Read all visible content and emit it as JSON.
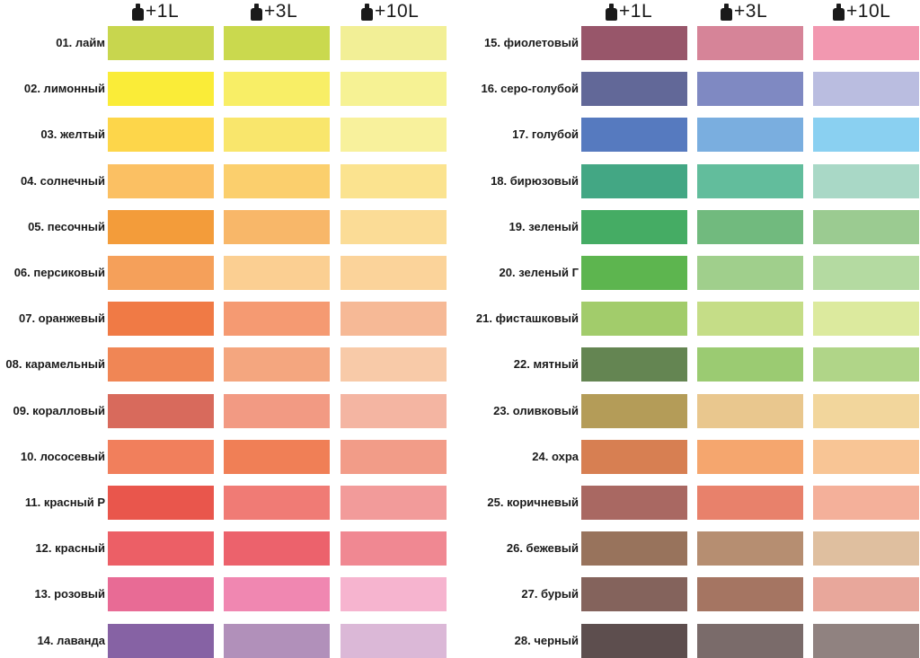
{
  "headers": [
    "+1L",
    "+3L",
    "+10L"
  ],
  "left_colors": [
    {
      "name": "01. лайм",
      "c": [
        "#c8d64e",
        "#cad94e",
        "#f2ef96"
      ]
    },
    {
      "name": "02. лимонный",
      "c": [
        "#faec38",
        "#f8ee66",
        "#f6f294"
      ]
    },
    {
      "name": "03. желтый",
      "c": [
        "#fdd64a",
        "#f9e66c",
        "#f8f19c"
      ]
    },
    {
      "name": "04. солнечный",
      "c": [
        "#fbc063",
        "#fbcf6d",
        "#fbe38f"
      ]
    },
    {
      "name": "05. песочный",
      "c": [
        "#f39c3a",
        "#f8b769",
        "#fbdc96"
      ]
    },
    {
      "name": "06. персиковый",
      "c": [
        "#f5a05a",
        "#fbcf92",
        "#fbd39a"
      ]
    },
    {
      "name": "07. оранжевый",
      "c": [
        "#f07a45",
        "#f59a72",
        "#f6b996"
      ]
    },
    {
      "name": "08. карамельный",
      "c": [
        "#f08655",
        "#f4a67f",
        "#f8caa8"
      ]
    },
    {
      "name": "09. коралловый",
      "c": [
        "#d86a5c",
        "#f29a83",
        "#f4b5a2"
      ]
    },
    {
      "name": "10. лососевый",
      "c": [
        "#f17f5c",
        "#f07f56",
        "#f29c88"
      ]
    },
    {
      "name": "11. красный Р",
      "c": [
        "#e9564c",
        "#f07b75",
        "#f29b9a"
      ]
    },
    {
      "name": "12. красный",
      "c": [
        "#ec5f66",
        "#ec626c",
        "#f08892"
      ]
    },
    {
      "name": "13. розовый",
      "c": [
        "#e86b95",
        "#f087b1",
        "#f6b4cf"
      ]
    },
    {
      "name": "14. лаванда",
      "c": [
        "#8662a4",
        "#b190ba",
        "#dbb8d7"
      ]
    }
  ],
  "right_colors": [
    {
      "name": "15. фиолетовый",
      "c": [
        "#98566a",
        "#d68498",
        "#f298b0"
      ]
    },
    {
      "name": "16. серо-голубой",
      "c": [
        "#626898",
        "#7f89c2",
        "#babde0"
      ]
    },
    {
      "name": "17. голубой",
      "c": [
        "#567abf",
        "#7aaedf",
        "#8ad0f1"
      ]
    },
    {
      "name": "18. бирюзовый",
      "c": [
        "#43a784",
        "#62bd9c",
        "#a9d8c6"
      ]
    },
    {
      "name": "19. зеленый",
      "c": [
        "#45ac64",
        "#71ba7e",
        "#9bcb91"
      ]
    },
    {
      "name": "20. зеленый Г",
      "c": [
        "#5db54f",
        "#a0cf8c",
        "#b4daa1"
      ]
    },
    {
      "name": "21. фисташковый",
      "c": [
        "#a2cc6b",
        "#c5dd87",
        "#dcea9e"
      ]
    },
    {
      "name": "22. мятный",
      "c": [
        "#648552",
        "#9bcb72",
        "#b0d588"
      ]
    },
    {
      "name": "23. оливковый",
      "c": [
        "#b49c58",
        "#e9c78e",
        "#f2d69c"
      ]
    },
    {
      "name": "24. охра",
      "c": [
        "#d77f52",
        "#f5a66e",
        "#f8c595"
      ]
    },
    {
      "name": "25. коричневый",
      "c": [
        "#a96862",
        "#e8816b",
        "#f4b09a"
      ]
    },
    {
      "name": "26. бежевый",
      "c": [
        "#98735c",
        "#b68e71",
        "#dfbf9f"
      ]
    },
    {
      "name": "27. бурый",
      "c": [
        "#84635c",
        "#a57562",
        "#e8a79b"
      ]
    },
    {
      "name": "28. черный",
      "c": [
        "#5d4e4e",
        "#7a6b6a",
        "#908280"
      ]
    }
  ]
}
